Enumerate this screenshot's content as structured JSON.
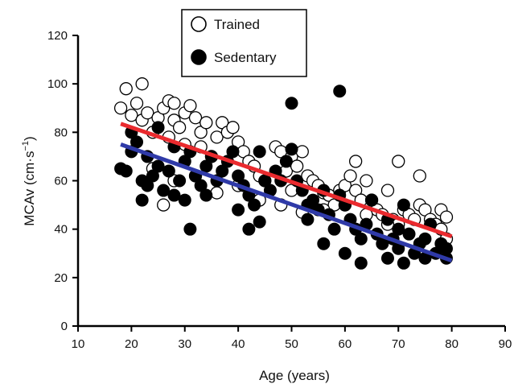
{
  "chart_data": {
    "type": "scatter",
    "title": "",
    "xlabel": "Age (years)",
    "ylabel_main": "MCAv (cm·s",
    "ylabel_sup": "−1",
    "ylabel_close": ")",
    "xlim": [
      10,
      90
    ],
    "ylim": [
      0,
      120
    ],
    "xticks": [
      "10",
      "20",
      "30",
      "40",
      "50",
      "60",
      "70",
      "80",
      "90"
    ],
    "yticks": [
      "0",
      "20",
      "40",
      "60",
      "80",
      "100",
      "120"
    ],
    "grid": false,
    "legend_position": "top-center",
    "series": [
      {
        "name": "Trained",
        "marker": "open-circle",
        "color": "#000000",
        "points": [
          [
            18,
            90
          ],
          [
            19,
            98
          ],
          [
            20,
            87
          ],
          [
            21,
            92
          ],
          [
            22,
            100
          ],
          [
            22,
            85
          ],
          [
            23,
            88
          ],
          [
            24,
            80
          ],
          [
            25,
            86
          ],
          [
            26,
            90
          ],
          [
            27,
            93
          ],
          [
            27,
            78
          ],
          [
            28,
            92
          ],
          [
            28,
            85
          ],
          [
            29,
            82
          ],
          [
            30,
            75
          ],
          [
            30,
            88
          ],
          [
            31,
            91
          ],
          [
            32,
            86
          ],
          [
            33,
            80
          ],
          [
            33,
            74
          ],
          [
            34,
            84
          ],
          [
            35,
            70
          ],
          [
            36,
            78
          ],
          [
            37,
            84
          ],
          [
            38,
            80
          ],
          [
            39,
            82
          ],
          [
            40,
            76
          ],
          [
            41,
            72
          ],
          [
            42,
            68
          ],
          [
            43,
            66
          ],
          [
            44,
            62
          ],
          [
            45,
            60
          ],
          [
            47,
            74
          ],
          [
            48,
            72
          ],
          [
            49,
            64
          ],
          [
            50,
            70
          ],
          [
            50,
            56
          ],
          [
            51,
            66
          ],
          [
            52,
            72
          ],
          [
            53,
            62
          ],
          [
            54,
            60
          ],
          [
            55,
            58
          ],
          [
            56,
            55
          ],
          [
            57,
            54
          ],
          [
            58,
            50
          ],
          [
            59,
            56
          ],
          [
            60,
            58
          ],
          [
            61,
            62
          ],
          [
            62,
            68
          ],
          [
            62,
            56
          ],
          [
            63,
            52
          ],
          [
            64,
            60
          ],
          [
            65,
            52
          ],
          [
            66,
            48
          ],
          [
            67,
            46
          ],
          [
            68,
            56
          ],
          [
            69,
            44
          ],
          [
            70,
            42
          ],
          [
            70,
            68
          ],
          [
            71,
            48
          ],
          [
            72,
            46
          ],
          [
            73,
            44
          ],
          [
            74,
            62
          ],
          [
            74,
            50
          ],
          [
            75,
            48
          ],
          [
            76,
            44
          ],
          [
            77,
            42
          ],
          [
            78,
            48
          ],
          [
            78,
            40
          ],
          [
            79,
            45
          ],
          [
            79,
            36
          ],
          [
            26,
            50
          ],
          [
            28,
            60
          ],
          [
            24,
            65
          ],
          [
            32,
            62
          ],
          [
            36,
            55
          ],
          [
            40,
            58
          ],
          [
            44,
            52
          ],
          [
            48,
            50
          ],
          [
            52,
            47
          ],
          [
            56,
            48
          ],
          [
            60,
            50
          ],
          [
            64,
            46
          ],
          [
            68,
            42
          ]
        ]
      },
      {
        "name": "Sedentary",
        "marker": "filled-circle",
        "color": "#000000",
        "points": [
          [
            18,
            65
          ],
          [
            19,
            64
          ],
          [
            20,
            72
          ],
          [
            20,
            80
          ],
          [
            21,
            76
          ],
          [
            22,
            60
          ],
          [
            22,
            52
          ],
          [
            23,
            58
          ],
          [
            23,
            70
          ],
          [
            24,
            62
          ],
          [
            25,
            66
          ],
          [
            25,
            82
          ],
          [
            26,
            56
          ],
          [
            27,
            64
          ],
          [
            28,
            54
          ],
          [
            28,
            74
          ],
          [
            29,
            60
          ],
          [
            30,
            68
          ],
          [
            30,
            52
          ],
          [
            31,
            40
          ],
          [
            31,
            72
          ],
          [
            32,
            62
          ],
          [
            33,
            58
          ],
          [
            34,
            66
          ],
          [
            34,
            54
          ],
          [
            35,
            70
          ],
          [
            36,
            60
          ],
          [
            37,
            64
          ],
          [
            38,
            68
          ],
          [
            39,
            72
          ],
          [
            40,
            62
          ],
          [
            40,
            48
          ],
          [
            41,
            58
          ],
          [
            42,
            40
          ],
          [
            42,
            54
          ],
          [
            43,
            50
          ],
          [
            44,
            43
          ],
          [
            44,
            72
          ],
          [
            45,
            60
          ],
          [
            46,
            56
          ],
          [
            47,
            64
          ],
          [
            48,
            60
          ],
          [
            49,
            68
          ],
          [
            50,
            73
          ],
          [
            50,
            92
          ],
          [
            51,
            60
          ],
          [
            52,
            56
          ],
          [
            53,
            50
          ],
          [
            53,
            44
          ],
          [
            54,
            52
          ],
          [
            55,
            48
          ],
          [
            56,
            34
          ],
          [
            56,
            56
          ],
          [
            57,
            46
          ],
          [
            58,
            40
          ],
          [
            59,
            97
          ],
          [
            59,
            54
          ],
          [
            60,
            50
          ],
          [
            60,
            30
          ],
          [
            61,
            44
          ],
          [
            62,
            40
          ],
          [
            63,
            26
          ],
          [
            63,
            36
          ],
          [
            64,
            42
          ],
          [
            65,
            52
          ],
          [
            66,
            38
          ],
          [
            67,
            34
          ],
          [
            68,
            28
          ],
          [
            68,
            44
          ],
          [
            69,
            36
          ],
          [
            70,
            32
          ],
          [
            70,
            40
          ],
          [
            71,
            50
          ],
          [
            71,
            26
          ],
          [
            72,
            38
          ],
          [
            73,
            30
          ],
          [
            74,
            34
          ],
          [
            75,
            28
          ],
          [
            75,
            36
          ],
          [
            76,
            42
          ],
          [
            77,
            30
          ],
          [
            78,
            34
          ],
          [
            79,
            28
          ],
          [
            79,
            32
          ]
        ]
      }
    ],
    "regression_lines": [
      {
        "name": "Trained",
        "color": "#ea2a2e",
        "x": [
          18,
          80
        ],
        "y": [
          83.5,
          37
        ]
      },
      {
        "name": "Sedentary",
        "color": "#2f3aa8",
        "x": [
          18,
          80
        ],
        "y": [
          75,
          27
        ]
      }
    ]
  }
}
